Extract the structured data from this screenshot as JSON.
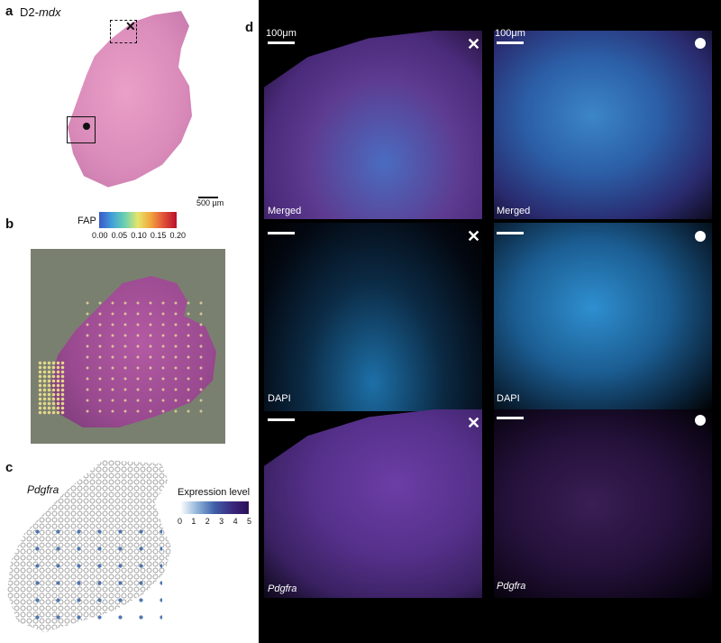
{
  "panel_a": {
    "letter": "a",
    "title_prefix": "D2-",
    "title_italic": "mdx",
    "scale": "500 µm"
  },
  "panel_b": {
    "letter": "b",
    "legend_label": "FAP",
    "ticks": [
      "0.00",
      "0.05",
      "0.10",
      "0.15",
      "0.20"
    ],
    "colors": [
      "#3b57c8",
      "#41a0d8",
      "#6cd1b0",
      "#e5e56a",
      "#f2a53d",
      "#e0503a",
      "#b8102a"
    ]
  },
  "panel_c": {
    "letter": "c",
    "gene": "Pdgfra",
    "legend_title": "Expression level",
    "ticks": [
      "0",
      "1",
      "2",
      "3",
      "4",
      "5"
    ]
  },
  "panel_d": {
    "letter": "d",
    "scale_label": "100μm",
    "rows": [
      {
        "left_label": "Merged",
        "right_label": "Merged"
      },
      {
        "left_label": "DAPI",
        "right_label": "DAPI"
      },
      {
        "left_label": "Pdgfra",
        "right_label": "Pdgfra"
      }
    ]
  }
}
